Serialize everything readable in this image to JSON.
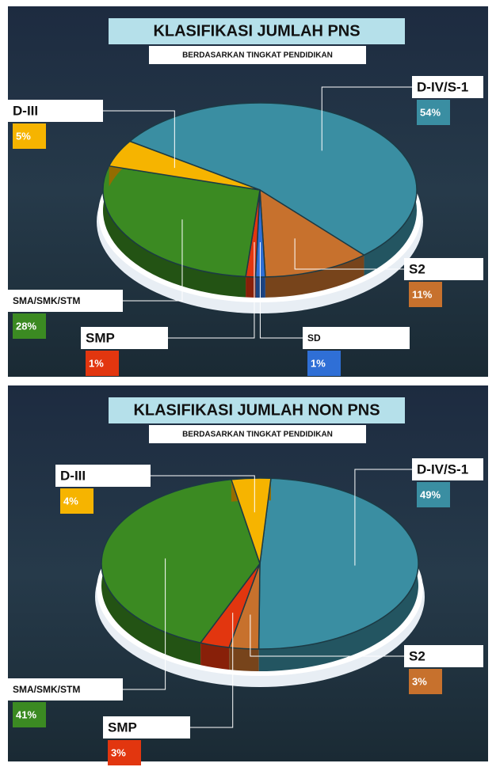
{
  "chart_data": [
    {
      "type": "pie",
      "title": "KLASIFIKASI JUMLAH PNS",
      "subtitle": "BERDASARKAN TINGKAT PENDIDIKAN",
      "categories": [
        "D-IV/S-1",
        "S2",
        "SD",
        "SMP",
        "SMA/SMK/STM",
        "D-III"
      ],
      "values": [
        54,
        11,
        1,
        1,
        28,
        5
      ],
      "value_labels": [
        "54%",
        "11%",
        "1%",
        "1%",
        "28%",
        "5%"
      ],
      "colors": [
        "#3a8ea2",
        "#c7712d",
        "#2f6fd6",
        "#e2360f",
        "#3b8a22",
        "#f6b400"
      ]
    },
    {
      "type": "pie",
      "title": "KLASIFIKASI JUMLAH NON PNS",
      "subtitle": "BERDASARKAN TINGKAT PENDIDIKAN",
      "categories": [
        "D-IV/S-1",
        "S2",
        "SMP",
        "SMA/SMK/STM",
        "D-III"
      ],
      "values": [
        49,
        3,
        3,
        41,
        4
      ],
      "value_labels": [
        "49%",
        "3%",
        "3%",
        "41%",
        "4%"
      ],
      "colors": [
        "#3a8ea2",
        "#c7712d",
        "#e2360f",
        "#3b8a22",
        "#f6b400"
      ]
    }
  ]
}
